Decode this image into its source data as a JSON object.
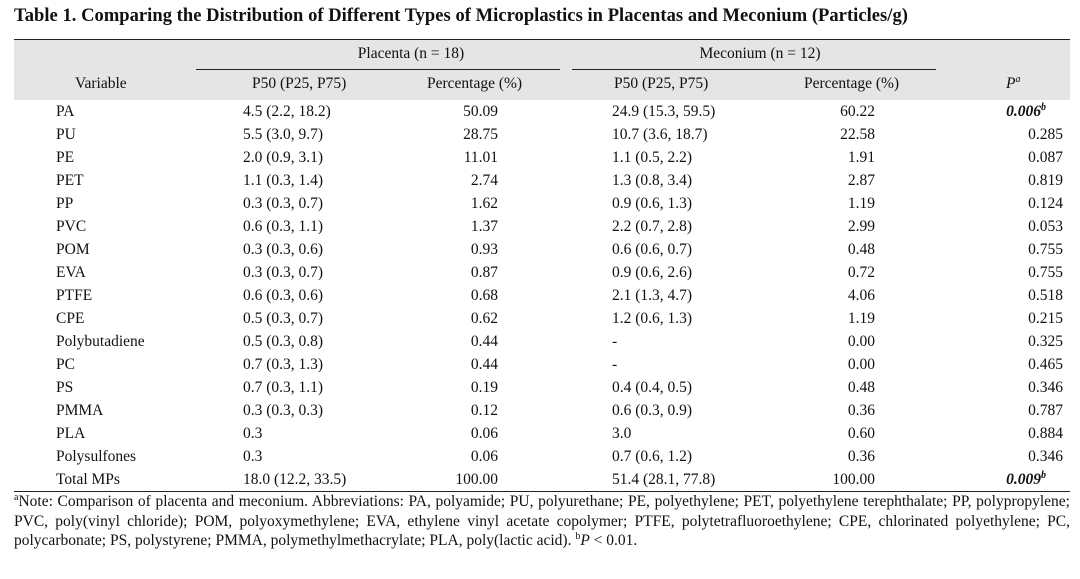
{
  "title": "Table 1. Comparing the Distribution of Different Types of Microplastics in Placentas and Meconium (Particles/g)",
  "groups": {
    "placenta": "Placenta (n = 18)",
    "meconium": "Meconium (n = 12)"
  },
  "columns": {
    "variable": "Variable",
    "placenta_p50": "P50 (P25, P75)",
    "placenta_pct": "Percentage (%)",
    "meconium_p50": "P50 (P25, P75)",
    "meconium_pct": "Percentage (%)",
    "p": "P",
    "p_sup": "a"
  },
  "rows": [
    {
      "variable": "PA",
      "placenta_p50": "4.5 (2.2, 18.2)",
      "placenta_pct": "50.09",
      "meconium_p50": "24.9 (15.3, 59.5)",
      "meconium_pct": "60.22",
      "p": "0.006",
      "p_sup": "b"
    },
    {
      "variable": "PU",
      "placenta_p50": "5.5 (3.0, 9.7)",
      "placenta_pct": "28.75",
      "meconium_p50": "10.7 (3.6, 18.7)",
      "meconium_pct": "22.58",
      "p": "0.285",
      "p_sup": ""
    },
    {
      "variable": "PE",
      "placenta_p50": "2.0 (0.9, 3.1)",
      "placenta_pct": "11.01",
      "meconium_p50": "1.1 (0.5, 2.2)",
      "meconium_pct": "1.91",
      "p": "0.087",
      "p_sup": ""
    },
    {
      "variable": "PET",
      "placenta_p50": "1.1 (0.3, 1.4)",
      "placenta_pct": "2.74",
      "meconium_p50": "1.3 (0.8, 3.4)",
      "meconium_pct": "2.87",
      "p": "0.819",
      "p_sup": ""
    },
    {
      "variable": "PP",
      "placenta_p50": "0.3 (0.3, 0.7)",
      "placenta_pct": "1.62",
      "meconium_p50": "0.9 (0.6, 1.3)",
      "meconium_pct": "1.19",
      "p": "0.124",
      "p_sup": ""
    },
    {
      "variable": "PVC",
      "placenta_p50": "0.6 (0.3, 1.1)",
      "placenta_pct": "1.37",
      "meconium_p50": "2.2 (0.7, 2.8)",
      "meconium_pct": "2.99",
      "p": "0.053",
      "p_sup": ""
    },
    {
      "variable": "POM",
      "placenta_p50": "0.3 (0.3, 0.6)",
      "placenta_pct": "0.93",
      "meconium_p50": "0.6 (0.6, 0.7)",
      "meconium_pct": "0.48",
      "p": "0.755",
      "p_sup": ""
    },
    {
      "variable": "EVA",
      "placenta_p50": "0.3 (0.3, 0.7)",
      "placenta_pct": "0.87",
      "meconium_p50": "0.9 (0.6, 2.6)",
      "meconium_pct": "0.72",
      "p": "0.755",
      "p_sup": ""
    },
    {
      "variable": "PTFE",
      "placenta_p50": "0.6 (0.3, 0.6)",
      "placenta_pct": "0.68",
      "meconium_p50": "2.1 (1.3, 4.7)",
      "meconium_pct": "4.06",
      "p": "0.518",
      "p_sup": ""
    },
    {
      "variable": "CPE",
      "placenta_p50": "0.5 (0.3, 0.7)",
      "placenta_pct": "0.62",
      "meconium_p50": "1.2 (0.6, 1.3)",
      "meconium_pct": "1.19",
      "p": "0.215",
      "p_sup": ""
    },
    {
      "variable": "Polybutadiene",
      "placenta_p50": "0.5 (0.3, 0.8)",
      "placenta_pct": "0.44",
      "meconium_p50": "-",
      "meconium_pct": "0.00",
      "p": "0.325",
      "p_sup": ""
    },
    {
      "variable": "PC",
      "placenta_p50": "0.7 (0.3, 1.3)",
      "placenta_pct": "0.44",
      "meconium_p50": "-",
      "meconium_pct": "0.00",
      "p": "0.465",
      "p_sup": ""
    },
    {
      "variable": "PS",
      "placenta_p50": "0.7 (0.3, 1.1)",
      "placenta_pct": "0.19",
      "meconium_p50": "0.4 (0.4, 0.5)",
      "meconium_pct": "0.48",
      "p": "0.346",
      "p_sup": ""
    },
    {
      "variable": "PMMA",
      "placenta_p50": "0.3 (0.3, 0.3)",
      "placenta_pct": "0.12",
      "meconium_p50": "0.6 (0.3, 0.9)",
      "meconium_pct": "0.36",
      "p": "0.787",
      "p_sup": ""
    },
    {
      "variable": "PLA",
      "placenta_p50": "0.3",
      "placenta_pct": "0.06",
      "meconium_p50": "3.0",
      "meconium_pct": "0.60",
      "p": "0.884",
      "p_sup": ""
    },
    {
      "variable": "Polysulfones",
      "placenta_p50": "0.3",
      "placenta_pct": "0.06",
      "meconium_p50": "0.7 (0.6, 1.2)",
      "meconium_pct": "0.36",
      "p": "0.346",
      "p_sup": ""
    },
    {
      "variable": "Total MPs",
      "placenta_p50": "18.0 (12.2, 33.5)",
      "placenta_pct": "100.00",
      "meconium_p50": "51.4 (28.1, 77.8)",
      "meconium_pct": "100.00",
      "p": "0.009",
      "p_sup": "b"
    }
  ],
  "footnote": {
    "a_mark": "a",
    "a_text": "Note: Comparison of placenta and meconium. Abbreviations: PA, polyamide; PU, polyurethane; PE, polyethylene; PET, polyethylene terephthalate; PP, polypropylene; PVC, poly(vinyl chloride); POM, polyoxymethylene; EVA, ethylene vinyl acetate copolymer; PTFE, polytetrafluoroethylene; CPE, chlorinated polyethylene; PC, polycarbonate; PS, polystyrene; PMMA, polymethylmethacrylate; PLA, poly(lactic acid).",
    "b_mark": "b",
    "b_text": "P < 0.01."
  }
}
